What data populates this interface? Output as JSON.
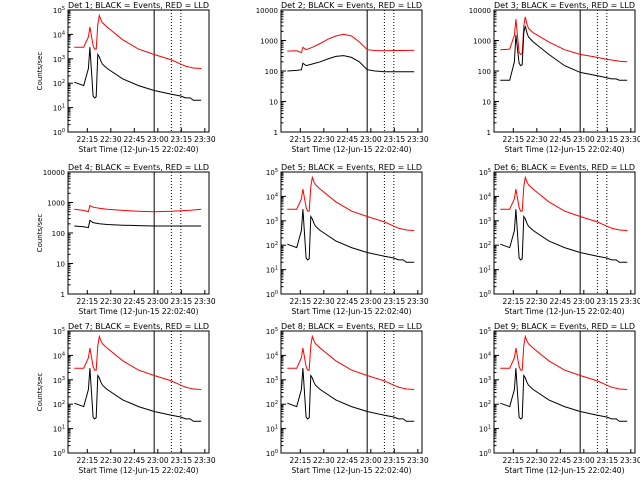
{
  "chart_data": [
    {
      "type": "line",
      "title": "Det 1; BLACK = Events, RED = LLD",
      "ylabel": "Counts/sec",
      "xlabel": "Start Time (12-Jun-15 22:02:40)",
      "x_ticks": [
        "22:15",
        "22:30",
        "22:45",
        "23:00",
        "23:15",
        "23:30"
      ],
      "y_ticks": [
        "10^0",
        "10^1",
        "10^2",
        "10^3",
        "10^4",
        "10^5"
      ],
      "yscale": "log",
      "ylim": [
        1,
        100000
      ],
      "x": [
        4,
        10,
        13,
        14,
        16,
        17,
        18,
        19,
        20,
        21,
        22,
        25,
        35,
        45,
        55,
        66,
        72,
        75,
        78,
        80,
        85
      ],
      "series": [
        {
          "name": "RED",
          "color": "#ff0000",
          "values": [
            3000,
            3000,
            8000,
            20000,
            3500,
            2500,
            2500,
            25000,
            60000,
            40000,
            30000,
            20000,
            6000,
            2500,
            1500,
            900,
            600,
            500,
            450,
            420,
            400
          ]
        },
        {
          "name": "BLACK",
          "color": "#000000",
          "values": [
            110,
            80,
            400,
            3000,
            30,
            25,
            28,
            1500,
            1200,
            800,
            600,
            400,
            150,
            80,
            50,
            35,
            30,
            25,
            25,
            20,
            20
          ]
        }
      ],
      "events": {
        "solid": [
          0,
          55
        ],
        "dotted": [
          66,
          72
        ]
      }
    },
    {
      "type": "line",
      "title": "Det 2; BLACK = Events, RED = LLD",
      "ylabel": "",
      "xlabel": "Start Time (12-Jun-15 22:02:40)",
      "x_ticks": [
        "22:15",
        "22:30",
        "22:45",
        "23:00",
        "23:15",
        "23:30"
      ],
      "y_ticks": [
        "1",
        "10",
        "100",
        "1000",
        "10000"
      ],
      "yscale": "log",
      "ylim": [
        1,
        10000
      ],
      "x": [
        4,
        10,
        13,
        14,
        16,
        20,
        25,
        30,
        35,
        40,
        45,
        50,
        55,
        60,
        66,
        72,
        78,
        85
      ],
      "series": [
        {
          "name": "RED",
          "color": "#ff0000",
          "values": [
            450,
            460,
            400,
            600,
            500,
            600,
            800,
            1100,
            1400,
            1600,
            1400,
            900,
            500,
            470,
            460,
            470,
            470,
            480
          ]
        },
        {
          "name": "BLACK",
          "color": "#000000",
          "values": [
            100,
            105,
            110,
            180,
            150,
            170,
            200,
            250,
            300,
            320,
            280,
            200,
            110,
            100,
            95,
            95,
            95,
            95
          ]
        }
      ],
      "events": {
        "solid": [
          0,
          55
        ],
        "dotted": [
          66,
          72
        ]
      }
    },
    {
      "type": "line",
      "title": "Det 3; BLACK = Events, RED = LLD",
      "ylabel": "",
      "xlabel": "Start Time (12-Jun-15 22:02:40)",
      "x_ticks": [
        "22:15",
        "22:30",
        "22:45",
        "23:00",
        "23:15",
        "23:30"
      ],
      "y_ticks": [
        "1",
        "10",
        "100",
        "1000",
        "10000"
      ],
      "yscale": "log",
      "ylim": [
        1,
        10000
      ],
      "x": [
        4,
        10,
        13,
        14,
        16,
        17,
        18,
        19,
        20,
        21,
        22,
        25,
        35,
        45,
        55,
        66,
        72,
        75,
        78,
        80,
        85
      ],
      "series": [
        {
          "name": "RED",
          "color": "#ff0000",
          "values": [
            500,
            520,
            1500,
            5000,
            400,
            350,
            380,
            3000,
            6000,
            3500,
            2500,
            1800,
            900,
            500,
            350,
            280,
            240,
            230,
            220,
            210,
            200
          ]
        },
        {
          "name": "BLACK",
          "color": "#000000",
          "values": [
            50,
            50,
            200,
            1500,
            180,
            150,
            160,
            1800,
            3000,
            1800,
            1300,
            900,
            350,
            150,
            90,
            70,
            60,
            55,
            55,
            50,
            50
          ]
        }
      ],
      "events": {
        "solid": [
          0,
          55
        ],
        "dotted": [
          66,
          72
        ]
      }
    },
    {
      "type": "line",
      "title": "Det 4; BLACK = Events, RED = LLD",
      "ylabel": "Counts/sec",
      "xlabel": "Start Time (12-Jun-15 22:02:40)",
      "x_ticks": [
        "22:15",
        "22:30",
        "22:45",
        "23:00",
        "23:15",
        "23:30"
      ],
      "y_ticks": [
        "1",
        "10",
        "100",
        "1000",
        "10000"
      ],
      "yscale": "log",
      "ylim": [
        1,
        10000
      ],
      "x": [
        4,
        10,
        13,
        14,
        16,
        20,
        25,
        35,
        45,
        55,
        66,
        72,
        78,
        85
      ],
      "series": [
        {
          "name": "RED",
          "color": "#ff0000",
          "values": [
            600,
            550,
            500,
            800,
            700,
            650,
            600,
            550,
            520,
            500,
            520,
            540,
            560,
            600
          ]
        },
        {
          "name": "BLACK",
          "color": "#000000",
          "values": [
            170,
            160,
            150,
            260,
            220,
            200,
            190,
            180,
            175,
            170,
            170,
            170,
            170,
            170
          ]
        }
      ],
      "events": {
        "solid": [
          0,
          55
        ],
        "dotted": [
          66,
          72
        ]
      }
    },
    {
      "type": "line",
      "title": "Det 5; BLACK = Events, RED = LLD",
      "ylabel": "",
      "xlabel": "Start Time (12-Jun-15 22:02:40)",
      "x_ticks": [
        "22:15",
        "22:30",
        "22:45",
        "23:00",
        "23:15",
        "23:30"
      ],
      "y_ticks": [
        "10^0",
        "10^1",
        "10^2",
        "10^3",
        "10^4",
        "10^5"
      ],
      "yscale": "log",
      "ylim": [
        1,
        100000
      ],
      "x": [
        4,
        10,
        13,
        14,
        16,
        17,
        18,
        19,
        20,
        21,
        22,
        25,
        35,
        45,
        55,
        66,
        72,
        75,
        78,
        80,
        85
      ],
      "series": [
        {
          "name": "RED",
          "color": "#ff0000",
          "values": [
            3000,
            3000,
            8000,
            20000,
            3500,
            2500,
            2500,
            25000,
            60000,
            40000,
            30000,
            20000,
            6000,
            2500,
            1500,
            900,
            600,
            500,
            450,
            420,
            400
          ]
        },
        {
          "name": "BLACK",
          "color": "#000000",
          "values": [
            110,
            80,
            400,
            3000,
            30,
            25,
            28,
            1500,
            1200,
            800,
            600,
            400,
            150,
            80,
            50,
            35,
            30,
            25,
            25,
            20,
            20
          ]
        }
      ],
      "events": {
        "solid": [
          0,
          55
        ],
        "dotted": [
          66,
          72
        ]
      }
    },
    {
      "type": "line",
      "title": "Det 6; BLACK = Events, RED = LLD",
      "ylabel": "",
      "xlabel": "Start Time (12-Jun-15 22:02:40)",
      "x_ticks": [
        "22:15",
        "22:30",
        "22:45",
        "23:00",
        "23:15",
        "23:30"
      ],
      "y_ticks": [
        "10^0",
        "10^1",
        "10^2",
        "10^3",
        "10^4",
        "10^5"
      ],
      "yscale": "log",
      "ylim": [
        1,
        100000
      ],
      "x": [
        4,
        10,
        13,
        14,
        16,
        17,
        18,
        19,
        20,
        21,
        22,
        25,
        35,
        45,
        55,
        66,
        72,
        75,
        78,
        80,
        85
      ],
      "series": [
        {
          "name": "RED",
          "color": "#ff0000",
          "values": [
            3000,
            3000,
            8000,
            20000,
            3500,
            2500,
            2500,
            25000,
            60000,
            40000,
            30000,
            20000,
            6000,
            2500,
            1500,
            900,
            600,
            500,
            450,
            420,
            400
          ]
        },
        {
          "name": "BLACK",
          "color": "#000000",
          "values": [
            110,
            80,
            400,
            3000,
            30,
            25,
            28,
            1500,
            1200,
            800,
            600,
            400,
            150,
            80,
            50,
            35,
            30,
            25,
            25,
            20,
            20
          ]
        }
      ],
      "events": {
        "solid": [
          0,
          55
        ],
        "dotted": [
          66,
          72
        ]
      }
    },
    {
      "type": "line",
      "title": "Det 7; BLACK = Events, RED = LLD",
      "ylabel": "Counts/sec",
      "xlabel": "Start Time (12-Jun-15 22:02:40)",
      "x_ticks": [
        "22:15",
        "22:30",
        "22:45",
        "23:00",
        "23:15",
        "23:30"
      ],
      "y_ticks": [
        "10^0",
        "10^1",
        "10^2",
        "10^3",
        "10^4",
        "10^5"
      ],
      "yscale": "log",
      "ylim": [
        1,
        100000
      ],
      "x": [
        4,
        10,
        13,
        14,
        16,
        17,
        18,
        19,
        20,
        21,
        22,
        25,
        35,
        45,
        55,
        66,
        72,
        75,
        78,
        80,
        85
      ],
      "series": [
        {
          "name": "RED",
          "color": "#ff0000",
          "values": [
            3000,
            3000,
            8000,
            20000,
            3500,
            2500,
            2500,
            25000,
            60000,
            40000,
            30000,
            20000,
            6000,
            2500,
            1500,
            900,
            600,
            500,
            450,
            420,
            400
          ]
        },
        {
          "name": "BLACK",
          "color": "#000000",
          "values": [
            110,
            80,
            400,
            3000,
            30,
            25,
            28,
            1500,
            1200,
            800,
            600,
            400,
            150,
            80,
            50,
            35,
            30,
            25,
            25,
            20,
            20
          ]
        }
      ],
      "events": {
        "solid": [
          0,
          55
        ],
        "dotted": [
          66,
          72
        ]
      }
    },
    {
      "type": "line",
      "title": "Det 8; BLACK = Events, RED = LLD",
      "ylabel": "",
      "xlabel": "Start Time (12-Jun-15 22:02:40)",
      "x_ticks": [
        "22:15",
        "22:30",
        "22:45",
        "23:00",
        "23:15",
        "23:30"
      ],
      "y_ticks": [
        "10^0",
        "10^1",
        "10^2",
        "10^3",
        "10^4",
        "10^5"
      ],
      "yscale": "log",
      "ylim": [
        1,
        100000
      ],
      "x": [
        4,
        10,
        13,
        14,
        16,
        17,
        18,
        19,
        20,
        21,
        22,
        25,
        35,
        45,
        55,
        66,
        72,
        75,
        78,
        80,
        85
      ],
      "series": [
        {
          "name": "RED",
          "color": "#ff0000",
          "values": [
            3000,
            3000,
            8000,
            20000,
            3500,
            2500,
            2500,
            25000,
            60000,
            40000,
            30000,
            20000,
            6000,
            2500,
            1500,
            900,
            600,
            500,
            450,
            420,
            400
          ]
        },
        {
          "name": "BLACK",
          "color": "#000000",
          "values": [
            110,
            80,
            400,
            3000,
            30,
            25,
            28,
            1500,
            1200,
            800,
            600,
            400,
            150,
            80,
            50,
            35,
            30,
            25,
            25,
            20,
            20
          ]
        }
      ],
      "events": {
        "solid": [
          0,
          55
        ],
        "dotted": [
          66,
          72
        ]
      }
    },
    {
      "type": "line",
      "title": "Det 9; BLACK = Events, RED = LLD",
      "ylabel": "",
      "xlabel": "Start Time (12-Jun-15 22:02:40)",
      "x_ticks": [
        "22:15",
        "22:30",
        "22:45",
        "23:00",
        "23:15",
        "23:30"
      ],
      "y_ticks": [
        "10^0",
        "10^1",
        "10^2",
        "10^3",
        "10^4",
        "10^5"
      ],
      "yscale": "log",
      "ylim": [
        1,
        100000
      ],
      "x": [
        4,
        10,
        13,
        14,
        16,
        17,
        18,
        19,
        20,
        21,
        22,
        25,
        35,
        45,
        55,
        66,
        72,
        75,
        78,
        80,
        85
      ],
      "series": [
        {
          "name": "RED",
          "color": "#ff0000",
          "values": [
            3000,
            3000,
            8000,
            20000,
            3500,
            2500,
            2500,
            25000,
            60000,
            40000,
            30000,
            20000,
            6000,
            2500,
            1500,
            900,
            600,
            500,
            450,
            420,
            400
          ]
        },
        {
          "name": "BLACK",
          "color": "#000000",
          "values": [
            110,
            80,
            400,
            3000,
            30,
            25,
            28,
            1500,
            1200,
            800,
            600,
            400,
            150,
            80,
            50,
            35,
            30,
            25,
            25,
            20,
            20
          ]
        }
      ],
      "events": {
        "solid": [
          0,
          55
        ],
        "dotted": [
          66,
          72
        ]
      }
    }
  ]
}
